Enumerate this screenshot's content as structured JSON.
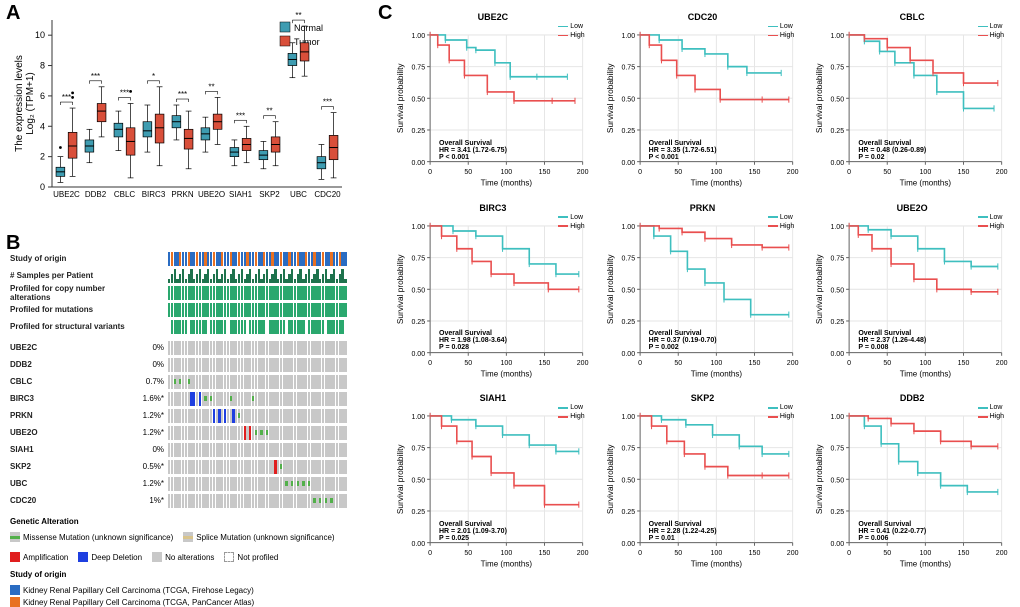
{
  "labels": {
    "A": "A",
    "B": "B",
    "C": "C"
  },
  "colors": {
    "normal": "#3E9CB1",
    "tumor": "#D94F3A",
    "box_stroke": "#222222",
    "axis": "#333333",
    "missense": "#52B04A",
    "splice": "#D9C48C",
    "amplification": "#E01E1E",
    "deep_deletion": "#1E3FE0",
    "no_alteration": "#C8C8C8",
    "row_header_green": "#2AA86E",
    "row_header_dark": "#1E734D",
    "origin_blue": "#2A6CC2",
    "origin_orange": "#E87122",
    "low": "#3EBFBF",
    "high": "#E94F4F",
    "grid": "#E6E6E6"
  },
  "boxplot": {
    "ylabel_top": "The expression levels",
    "ylabel_bottom": "Log₂ (TPM+1)",
    "legend": [
      "Normal",
      "Tumor"
    ],
    "ylim": [
      0,
      11
    ],
    "yticks": [
      0,
      2,
      4,
      6,
      8,
      10
    ],
    "genes": [
      "UBE2C",
      "DDB2",
      "CBLC",
      "BIRC3",
      "PRKN",
      "UBE2O",
      "SIAH1",
      "SKP2",
      "UBC",
      "CDC20"
    ],
    "sig": [
      "***",
      "***",
      "***",
      "*",
      "***",
      "**",
      "***",
      "**",
      "**",
      "***"
    ],
    "data": [
      {
        "normal": {
          "q1": 0.7,
          "med": 1.0,
          "q3": 1.3,
          "lw": 0.3,
          "uw": 2.0,
          "out": [
            2.6
          ]
        },
        "tumor": {
          "q1": 1.9,
          "med": 2.7,
          "q3": 3.6,
          "lw": 0.7,
          "uw": 5.2,
          "out": [
            5.9,
            6.2
          ]
        }
      },
      {
        "normal": {
          "q1": 2.3,
          "med": 2.7,
          "q3": 3.1,
          "lw": 1.6,
          "uw": 3.8,
          "out": []
        },
        "tumor": {
          "q1": 4.3,
          "med": 5.0,
          "q3": 5.5,
          "lw": 3.3,
          "uw": 6.6,
          "out": []
        }
      },
      {
        "normal": {
          "q1": 3.3,
          "med": 3.8,
          "q3": 4.2,
          "lw": 2.4,
          "uw": 5.0,
          "out": []
        },
        "tumor": {
          "q1": 2.1,
          "med": 3.0,
          "q3": 3.9,
          "lw": 0.6,
          "uw": 5.5,
          "out": [
            6.3
          ]
        }
      },
      {
        "normal": {
          "q1": 3.3,
          "med": 3.7,
          "q3": 4.3,
          "lw": 2.3,
          "uw": 5.4,
          "out": []
        },
        "tumor": {
          "q1": 2.9,
          "med": 3.9,
          "q3": 4.8,
          "lw": 1.4,
          "uw": 6.6,
          "out": []
        }
      },
      {
        "normal": {
          "q1": 3.9,
          "med": 4.3,
          "q3": 4.7,
          "lw": 3.1,
          "uw": 5.4,
          "out": []
        },
        "tumor": {
          "q1": 2.5,
          "med": 3.2,
          "q3": 3.8,
          "lw": 1.2,
          "uw": 5.0,
          "out": []
        }
      },
      {
        "normal": {
          "q1": 3.1,
          "med": 3.5,
          "q3": 3.9,
          "lw": 2.3,
          "uw": 4.6,
          "out": []
        },
        "tumor": {
          "q1": 3.8,
          "med": 4.3,
          "q3": 4.8,
          "lw": 2.8,
          "uw": 5.9,
          "out": []
        }
      },
      {
        "normal": {
          "q1": 2.0,
          "med": 2.3,
          "q3": 2.6,
          "lw": 1.4,
          "uw": 3.1,
          "out": []
        },
        "tumor": {
          "q1": 2.4,
          "med": 2.8,
          "q3": 3.2,
          "lw": 1.6,
          "uw": 4.0,
          "out": []
        }
      },
      {
        "normal": {
          "q1": 1.8,
          "med": 2.1,
          "q3": 2.4,
          "lw": 1.2,
          "uw": 3.0,
          "out": []
        },
        "tumor": {
          "q1": 2.3,
          "med": 2.8,
          "q3": 3.3,
          "lw": 1.4,
          "uw": 4.3,
          "out": []
        }
      },
      {
        "normal": {
          "q1": 8.0,
          "med": 8.4,
          "q3": 8.8,
          "lw": 7.2,
          "uw": 9.5,
          "out": []
        },
        "tumor": {
          "q1": 8.3,
          "med": 8.9,
          "q3": 9.5,
          "lw": 7.3,
          "uw": 10.6,
          "out": []
        }
      },
      {
        "normal": {
          "q1": 1.2,
          "med": 1.6,
          "q3": 2.0,
          "lw": 0.5,
          "uw": 2.8,
          "out": []
        },
        "tumor": {
          "q1": 1.8,
          "med": 2.6,
          "q3": 3.4,
          "lw": 0.6,
          "uw": 4.9,
          "out": []
        }
      }
    ]
  },
  "panel_b": {
    "profile_rows": [
      {
        "label": "Study of origin",
        "type": "origin"
      },
      {
        "label": "# Samples per Patient",
        "type": "samples"
      },
      {
        "label": "Profiled for copy number alterations",
        "type": "profile"
      },
      {
        "label": "Profiled for mutations",
        "type": "profile"
      },
      {
        "label": "Profiled for structural variants",
        "type": "profile_sparse"
      }
    ],
    "n_cols": 64,
    "gene_rows": [
      {
        "gene": "UBE2C",
        "pct": "0%",
        "alts": {}
      },
      {
        "gene": "DDB2",
        "pct": "0%",
        "alts": {}
      },
      {
        "gene": "CBLC",
        "pct": "0.7%",
        "alts": {
          "2": "missense",
          "4": "missense",
          "7": "missense"
        }
      },
      {
        "gene": "BIRC3",
        "pct": "1.6%*",
        "alts": {
          "8": "deep_deletion",
          "9": "deep_deletion",
          "11": "deep_deletion",
          "13": "missense",
          "15": "missense",
          "22": "missense",
          "30": "missense"
        }
      },
      {
        "gene": "PRKN",
        "pct": "1.2%*",
        "alts": {
          "16": "deep_deletion",
          "18": "deep_deletion",
          "20": "deep_deletion",
          "23": "deep_deletion",
          "25": "missense"
        }
      },
      {
        "gene": "UBE2O",
        "pct": "1.2%*",
        "alts": {
          "27": "amplification",
          "29": "amplification",
          "31": "missense",
          "33": "missense",
          "35": "missense"
        }
      },
      {
        "gene": "SIAH1",
        "pct": "0%",
        "alts": {}
      },
      {
        "gene": "SKP2",
        "pct": "0.5%*",
        "alts": {
          "38": "amplification",
          "40": "missense"
        }
      },
      {
        "gene": "UBC",
        "pct": "1.2%*",
        "alts": {
          "42": "missense",
          "44": "missense",
          "46": "missense",
          "48": "missense",
          "50": "missense"
        }
      },
      {
        "gene": "CDC20",
        "pct": "1%*",
        "alts": {
          "52": "missense",
          "54": "missense",
          "56": "missense",
          "58": "missense"
        }
      }
    ],
    "legend_genetic_label": "Genetic Alteration",
    "legend_genetic": [
      {
        "label": "Missense Mutation (unknown significance)",
        "key": "missense"
      },
      {
        "label": "Splice Mutation (unknown significance)",
        "key": "splice"
      },
      {
        "label": "Amplification",
        "key": "amplification"
      },
      {
        "label": "Deep Deletion",
        "key": "deep_deletion"
      },
      {
        "label": "No alterations",
        "key": "no_alteration"
      },
      {
        "label": "Not profiled",
        "key": "not_profiled"
      }
    ],
    "legend_origin_label": "Study of origin",
    "legend_origin": [
      {
        "label": "Kidney Renal Papillary Cell Carcinoma (TCGA, Firehose Legacy)",
        "key": "origin_blue"
      },
      {
        "label": "Kidney Renal Papillary Cell Carcinoma (TCGA, PanCancer Atlas)",
        "key": "origin_orange"
      }
    ]
  },
  "survival": {
    "xlabel": "Time (months)",
    "ylabel": "Survival probability",
    "stat_label": "Overall Survival",
    "legend": [
      "Low",
      "High"
    ],
    "xlim": [
      0,
      200
    ],
    "xticks": [
      0,
      50,
      100,
      150,
      200
    ],
    "ylim": [
      0,
      1
    ],
    "yticks": [
      0.0,
      0.25,
      0.5,
      0.75,
      1.0
    ],
    "plots": [
      {
        "gene": "UBE2C",
        "hr": "HR = 3.41 (1.72-6.75)",
        "p": "P < 0.001",
        "low": [
          [
            0,
            1
          ],
          [
            20,
            0.96
          ],
          [
            48,
            0.9
          ],
          [
            60,
            0.88
          ],
          [
            85,
            0.78
          ],
          [
            105,
            0.67
          ],
          [
            140,
            0.67
          ],
          [
            180,
            0.67
          ]
        ],
        "high": [
          [
            0,
            1
          ],
          [
            10,
            0.92
          ],
          [
            25,
            0.8
          ],
          [
            45,
            0.68
          ],
          [
            75,
            0.55
          ],
          [
            110,
            0.48
          ],
          [
            160,
            0.48
          ],
          [
            190,
            0.48
          ]
        ]
      },
      {
        "gene": "CDC20",
        "hr": "HR = 3.35 (1.72-6.51)",
        "p": "P < 0.001",
        "low": [
          [
            0,
            1
          ],
          [
            25,
            0.96
          ],
          [
            55,
            0.89
          ],
          [
            85,
            0.85
          ],
          [
            115,
            0.75
          ],
          [
            140,
            0.7
          ],
          [
            185,
            0.7
          ]
        ],
        "high": [
          [
            0,
            1
          ],
          [
            12,
            0.92
          ],
          [
            28,
            0.8
          ],
          [
            48,
            0.68
          ],
          [
            72,
            0.57
          ],
          [
            105,
            0.49
          ],
          [
            160,
            0.49
          ],
          [
            195,
            0.49
          ]
        ]
      },
      {
        "gene": "CBLC",
        "hr": "HR = 0.48 (0.26-0.89)",
        "p": "P = 0.02",
        "low": [
          [
            0,
            1
          ],
          [
            20,
            0.95
          ],
          [
            40,
            0.87
          ],
          [
            60,
            0.78
          ],
          [
            85,
            0.68
          ],
          [
            115,
            0.55
          ],
          [
            150,
            0.42
          ],
          [
            190,
            0.42
          ]
        ],
        "high": [
          [
            0,
            1
          ],
          [
            20,
            0.97
          ],
          [
            50,
            0.9
          ],
          [
            80,
            0.8
          ],
          [
            110,
            0.7
          ],
          [
            150,
            0.62
          ],
          [
            195,
            0.62
          ]
        ]
      },
      {
        "gene": "BIRC3",
        "hr": "HR = 1.98 (1.08-3.64)",
        "p": "P = 0.028",
        "low": [
          [
            0,
            1
          ],
          [
            30,
            0.96
          ],
          [
            60,
            0.92
          ],
          [
            95,
            0.82
          ],
          [
            130,
            0.7
          ],
          [
            165,
            0.62
          ],
          [
            195,
            0.62
          ]
        ],
        "high": [
          [
            0,
            1
          ],
          [
            15,
            0.92
          ],
          [
            35,
            0.82
          ],
          [
            55,
            0.72
          ],
          [
            80,
            0.62
          ],
          [
            110,
            0.55
          ],
          [
            155,
            0.5
          ],
          [
            195,
            0.5
          ]
        ]
      },
      {
        "gene": "PRKN",
        "hr": "HR = 0.37 (0.19-0.70)",
        "p": "P = 0.002",
        "low": [
          [
            0,
            1
          ],
          [
            18,
            0.92
          ],
          [
            40,
            0.8
          ],
          [
            62,
            0.66
          ],
          [
            85,
            0.55
          ],
          [
            110,
            0.42
          ],
          [
            145,
            0.3
          ],
          [
            195,
            0.3
          ]
        ],
        "high": [
          [
            0,
            1
          ],
          [
            25,
            0.98
          ],
          [
            55,
            0.95
          ],
          [
            85,
            0.9
          ],
          [
            120,
            0.85
          ],
          [
            160,
            0.83
          ],
          [
            195,
            0.83
          ]
        ]
      },
      {
        "gene": "UBE2O",
        "hr": "HR = 2.37 (1.26-4.48)",
        "p": "P = 0.008",
        "low": [
          [
            0,
            1
          ],
          [
            25,
            0.97
          ],
          [
            55,
            0.92
          ],
          [
            90,
            0.82
          ],
          [
            125,
            0.72
          ],
          [
            160,
            0.68
          ],
          [
            195,
            0.68
          ]
        ],
        "high": [
          [
            0,
            1
          ],
          [
            12,
            0.93
          ],
          [
            30,
            0.82
          ],
          [
            55,
            0.7
          ],
          [
            85,
            0.58
          ],
          [
            115,
            0.5
          ],
          [
            160,
            0.48
          ],
          [
            195,
            0.48
          ]
        ]
      },
      {
        "gene": "SIAH1",
        "hr": "HR = 2.01 (1.09-3.70)",
        "p": "P = 0.025",
        "low": [
          [
            0,
            1
          ],
          [
            28,
            0.97
          ],
          [
            60,
            0.92
          ],
          [
            95,
            0.85
          ],
          [
            130,
            0.77
          ],
          [
            165,
            0.72
          ],
          [
            195,
            0.72
          ]
        ],
        "high": [
          [
            0,
            1
          ],
          [
            15,
            0.92
          ],
          [
            35,
            0.8
          ],
          [
            55,
            0.68
          ],
          [
            80,
            0.55
          ],
          [
            110,
            0.45
          ],
          [
            150,
            0.3
          ],
          [
            195,
            0.3
          ]
        ]
      },
      {
        "gene": "SKP2",
        "hr": "HR = 2.28 (1.22-4.25)",
        "p": "P = 0.01",
        "low": [
          [
            0,
            1
          ],
          [
            28,
            0.97
          ],
          [
            60,
            0.93
          ],
          [
            95,
            0.85
          ],
          [
            130,
            0.76
          ],
          [
            160,
            0.7
          ],
          [
            195,
            0.7
          ]
        ],
        "high": [
          [
            0,
            1
          ],
          [
            15,
            0.92
          ],
          [
            35,
            0.8
          ],
          [
            58,
            0.7
          ],
          [
            85,
            0.6
          ],
          [
            115,
            0.53
          ],
          [
            160,
            0.53
          ],
          [
            195,
            0.53
          ]
        ]
      },
      {
        "gene": "DDB2",
        "hr": "HR = 0.41 (0.22-0.77)",
        "p": "P = 0.006",
        "low": [
          [
            0,
            1
          ],
          [
            20,
            0.92
          ],
          [
            42,
            0.78
          ],
          [
            65,
            0.64
          ],
          [
            90,
            0.55
          ],
          [
            120,
            0.45
          ],
          [
            155,
            0.4
          ],
          [
            195,
            0.4
          ]
        ],
        "high": [
          [
            0,
            1
          ],
          [
            25,
            0.98
          ],
          [
            55,
            0.94
          ],
          [
            85,
            0.88
          ],
          [
            120,
            0.8
          ],
          [
            160,
            0.76
          ],
          [
            195,
            0.76
          ]
        ]
      }
    ]
  }
}
